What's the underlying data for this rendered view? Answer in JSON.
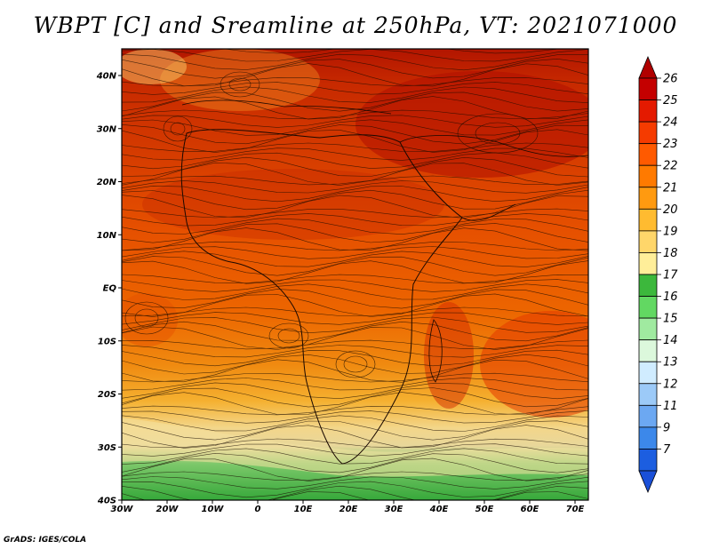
{
  "title": "WBPT [C] and Sreamline at 250hPa, VT: 2021071000",
  "credit": "GrADS: IGES/COLA",
  "map": {
    "lon_labels": [
      "30W",
      "20W",
      "10W",
      "0",
      "10E",
      "20E",
      "30E",
      "40E",
      "50E",
      "60E",
      "70E"
    ],
    "lat_labels": [
      "40N",
      "30N",
      "20N",
      "10N",
      "EQ",
      "10S",
      "20S",
      "30S",
      "40S"
    ]
  },
  "colorbar": {
    "levels": [
      "26",
      "25",
      "24",
      "23",
      "22",
      "21",
      "20",
      "19",
      "18",
      "17",
      "16",
      "15",
      "14",
      "13",
      "12",
      "11",
      "9",
      "7"
    ],
    "colors": [
      "#c40000",
      "#e41a00",
      "#f53b00",
      "#ff5a00",
      "#ff7a00",
      "#ff9a10",
      "#ffbb30",
      "#ffd66a",
      "#ffee99",
      "#3cb83c",
      "#62d862",
      "#a0eaa0",
      "#dcf8dc",
      "#d0ecff",
      "#9ccaf8",
      "#6ca8f2",
      "#3c88ea",
      "#1c5ee0"
    ],
    "top_color": "#b00000",
    "bottom_color": "#1a50d8"
  }
}
